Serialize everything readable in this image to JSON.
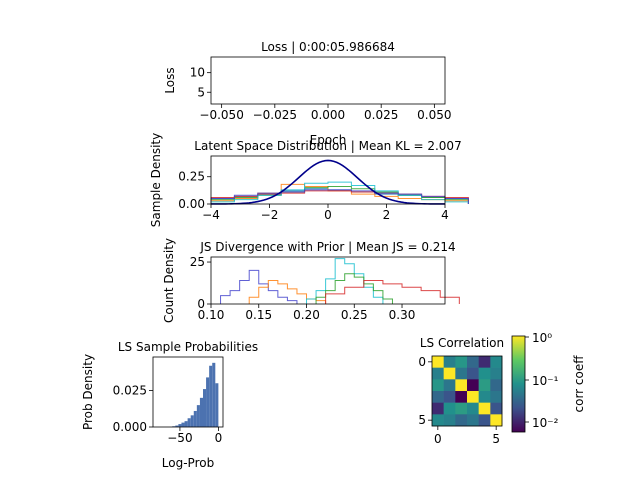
{
  "chart_data": [
    {
      "type": "line",
      "title": "Loss | 0:00:05.986684",
      "xlabel": "Epoch",
      "ylabel": "Loss",
      "xlim": [
        -0.055,
        0.055
      ],
      "ylim": [
        2,
        14
      ],
      "xticks": [
        -0.05,
        -0.025,
        0.0,
        0.025,
        0.05
      ],
      "xticklabels": [
        "−0.050",
        "−0.025",
        "0.000",
        "0.025",
        "0.050"
      ],
      "yticks": [
        5,
        10
      ],
      "yticklabels": [
        "5",
        "10"
      ],
      "series": []
    },
    {
      "type": "line",
      "title": "Latent Space Distribution | Mean KL = 2.007",
      "xlabel": "",
      "ylabel": "Sample Density",
      "xlim": [
        -4,
        4
      ],
      "ylim": [
        0,
        0.44
      ],
      "xticks": [
        -4,
        -2,
        0,
        2,
        4
      ],
      "xticklabels": [
        "−4",
        "−2",
        "0",
        "2",
        "4"
      ],
      "yticks": [
        0.0,
        0.25
      ],
      "yticklabels": [
        "0.00",
        "0.25"
      ],
      "prior_color": "#00008b",
      "series": [
        {
          "color": "#1f77b4",
          "x": [
            -4,
            -3.2,
            -2.4,
            -1.6,
            -0.8,
            0,
            0.8,
            1.6,
            2.4,
            3.2,
            4
          ],
          "y": [
            0.05,
            0.07,
            0.09,
            0.12,
            0.14,
            0.13,
            0.11,
            0.09,
            0.08,
            0.06,
            0.05
          ]
        },
        {
          "color": "#ff7f0e",
          "x": [
            -4,
            -3.2,
            -2.4,
            -1.6,
            -0.8,
            0,
            0.8,
            1.6,
            2.4,
            3.2,
            4
          ],
          "y": [
            0.03,
            0.05,
            0.1,
            0.18,
            0.16,
            0.12,
            0.09,
            0.07,
            0.05,
            0.04,
            0.03
          ]
        },
        {
          "color": "#2ca02c",
          "x": [
            -4,
            -3.2,
            -2.4,
            -1.6,
            -0.8,
            0,
            0.8,
            1.6,
            2.4,
            3.2,
            4
          ],
          "y": [
            0.04,
            0.06,
            0.08,
            0.11,
            0.15,
            0.16,
            0.14,
            0.11,
            0.08,
            0.06,
            0.04
          ]
        },
        {
          "color": "#d62728",
          "x": [
            -4,
            -3.2,
            -2.4,
            -1.6,
            -0.8,
            0,
            0.8,
            1.6,
            2.4,
            3.2,
            4
          ],
          "y": [
            0.06,
            0.07,
            0.09,
            0.1,
            0.12,
            0.12,
            0.11,
            0.1,
            0.09,
            0.07,
            0.06
          ]
        },
        {
          "color": "#17becf",
          "x": [
            -4,
            -3.2,
            -2.4,
            -1.6,
            -0.8,
            0,
            0.8,
            1.6,
            2.4,
            3.2,
            4
          ],
          "y": [
            0.02,
            0.04,
            0.08,
            0.13,
            0.19,
            0.2,
            0.17,
            0.12,
            0.08,
            0.04,
            0.02
          ]
        },
        {
          "color": "#4444cc",
          "x": [
            -4,
            -3.2,
            -2.4,
            -1.6,
            -0.8,
            0,
            0.8,
            1.6,
            2.4,
            3.2,
            4
          ],
          "y": [
            0.05,
            0.08,
            0.1,
            0.11,
            0.13,
            0.13,
            0.12,
            0.1,
            0.09,
            0.07,
            0.05
          ]
        }
      ]
    },
    {
      "type": "line",
      "title": "JS Divergence with Prior | Mean JS = 0.214",
      "xlabel": "",
      "ylabel": "Count Density",
      "xlim": [
        0.1,
        0.345
      ],
      "ylim": [
        0,
        28
      ],
      "xticks": [
        0.1,
        0.15,
        0.2,
        0.25,
        0.3
      ],
      "xticklabels": [
        "0.10",
        "0.15",
        "0.20",
        "0.25",
        "0.30"
      ],
      "yticks": [
        0,
        25
      ],
      "yticklabels": [
        "0",
        "25"
      ],
      "series": [
        {
          "color": "#4444cc",
          "x": [
            0.11,
            0.12,
            0.13,
            0.14,
            0.15,
            0.16,
            0.17,
            0.18
          ],
          "y": [
            5,
            8,
            14,
            20,
            12,
            8,
            4,
            2
          ]
        },
        {
          "color": "#ff7f0e",
          "x": [
            0.14,
            0.15,
            0.16,
            0.17,
            0.18,
            0.19,
            0.2,
            0.21
          ],
          "y": [
            4,
            10,
            14,
            12,
            9,
            6,
            3,
            2
          ]
        },
        {
          "color": "#17becf",
          "x": [
            0.2,
            0.21,
            0.22,
            0.23,
            0.24,
            0.25,
            0.26,
            0.27
          ],
          "y": [
            3,
            8,
            15,
            27,
            24,
            18,
            10,
            4
          ]
        },
        {
          "color": "#2ca02c",
          "x": [
            0.21,
            0.22,
            0.23,
            0.24,
            0.25,
            0.26,
            0.27,
            0.28
          ],
          "y": [
            4,
            8,
            14,
            18,
            16,
            12,
            8,
            3
          ]
        },
        {
          "color": "#d62728",
          "x": [
            0.22,
            0.24,
            0.26,
            0.28,
            0.3,
            0.32,
            0.34
          ],
          "y": [
            6,
            10,
            14,
            12,
            10,
            8,
            4
          ]
        }
      ]
    },
    {
      "type": "bar",
      "title": "LS Sample Probabilities",
      "xlabel": "Log-Prob",
      "ylabel": "Prob Density",
      "xlim": [
        -85,
        6
      ],
      "ylim": [
        0,
        0.048
      ],
      "xticks": [
        -50,
        0
      ],
      "xticklabels": [
        "−50",
        "0"
      ],
      "yticks": [
        0.0,
        0.025
      ],
      "yticklabels": [
        "0.000",
        "0.025"
      ],
      "color": "#4c72b0",
      "categories": [
        -60,
        -56,
        -52,
        -48,
        -44,
        -40,
        -36,
        -32,
        -28,
        -24,
        -20,
        -16,
        -12,
        -8,
        -4
      ],
      "values": [
        0.0005,
        0.001,
        0.002,
        0.003,
        0.004,
        0.006,
        0.008,
        0.011,
        0.015,
        0.02,
        0.026,
        0.034,
        0.042,
        0.044,
        0.03
      ]
    },
    {
      "type": "heatmap",
      "title": "LS Correlation",
      "xlabel": "",
      "ylabel": "",
      "xticks": [
        0,
        5
      ],
      "yticks": [
        0,
        5
      ],
      "colorbar_label": "corr coeff",
      "colorbar_ticks": [
        "10⁰",
        "10⁻¹",
        "10⁻²"
      ],
      "values": [
        [
          1.0,
          0.05,
          0.08,
          0.03,
          0.01,
          0.06
        ],
        [
          0.05,
          1.0,
          0.04,
          0.02,
          0.07,
          0.05
        ],
        [
          0.08,
          0.04,
          1.0,
          0.005,
          0.09,
          0.03
        ],
        [
          0.03,
          0.02,
          0.005,
          1.0,
          0.06,
          0.04
        ],
        [
          0.01,
          0.07,
          0.09,
          0.06,
          1.0,
          0.02
        ],
        [
          0.06,
          0.05,
          0.03,
          0.04,
          0.02,
          1.0
        ]
      ]
    }
  ]
}
